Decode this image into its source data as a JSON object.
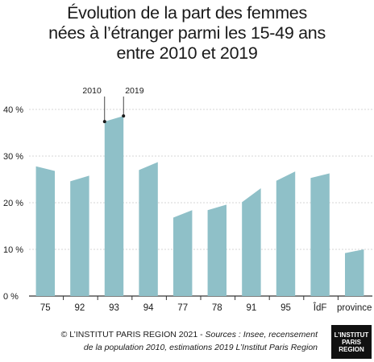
{
  "chart_data": {
    "type": "bar",
    "title_lines": [
      "Évolution de la part des femmes",
      "nées à l’étranger parmi les 15-49 ans",
      "entre 2010 et 2019"
    ],
    "categories": [
      "75",
      "92",
      "93",
      "94",
      "77",
      "78",
      "91",
      "95",
      "ÎdF",
      "province"
    ],
    "series": [
      {
        "name": "2010",
        "values": [
          27.8,
          24.6,
          37.4,
          27.0,
          16.8,
          18.4,
          20.1,
          24.7,
          25.3,
          9.2
        ]
      },
      {
        "name": "2019",
        "values": [
          26.8,
          25.8,
          38.6,
          28.7,
          18.4,
          19.6,
          23.1,
          26.7,
          26.3,
          10.0
        ]
      }
    ],
    "series_annotations": [
      "2010",
      "2019"
    ],
    "annotated_category": "93",
    "yticks": [
      "0 %",
      "10 %",
      "20 %",
      "30 %",
      "40 %"
    ],
    "ylim": [
      0,
      40
    ],
    "grid": true,
    "bar_color": "#8fc0c8"
  },
  "footer": {
    "line1_prefix": "© L’INSTITUT PARIS REGION 2021 - ",
    "line1_italic": "Sources : Insee, recensement",
    "line2_italic": "de la population 2010, estimations 2019 L’Institut Paris Region"
  },
  "logo": {
    "line1": "L’INSTITUT",
    "line2": "PARIS",
    "line3": "REGION"
  }
}
